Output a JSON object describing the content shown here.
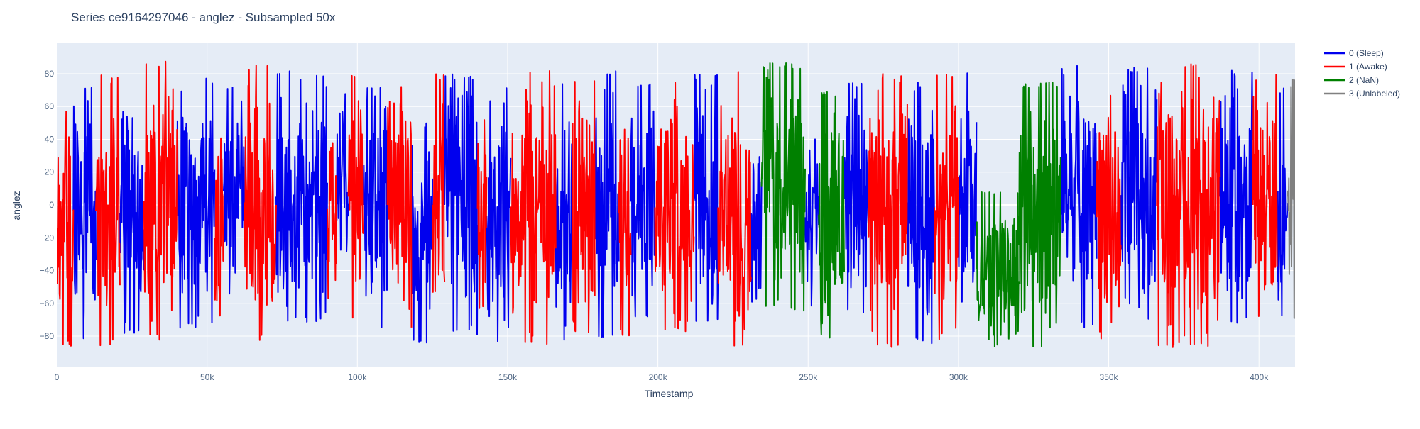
{
  "chart_data": {
    "type": "line",
    "title": "Series ce9164297046 - anglez - Subsampled 50x",
    "xlabel": "Timestamp",
    "ylabel": "anglez",
    "xlim": [
      0,
      412000
    ],
    "ylim": [
      -99,
      99
    ],
    "x_ticks": [
      {
        "value": 0,
        "label": "0"
      },
      {
        "value": 50000,
        "label": "50k"
      },
      {
        "value": 100000,
        "label": "100k"
      },
      {
        "value": 150000,
        "label": "150k"
      },
      {
        "value": 200000,
        "label": "200k"
      },
      {
        "value": 250000,
        "label": "250k"
      },
      {
        "value": 300000,
        "label": "300k"
      },
      {
        "value": 350000,
        "label": "350k"
      },
      {
        "value": 400000,
        "label": "400k"
      }
    ],
    "y_ticks": [
      {
        "value": -80,
        "label": "−80"
      },
      {
        "value": -60,
        "label": "−60"
      },
      {
        "value": -40,
        "label": "−40"
      },
      {
        "value": -20,
        "label": "−20"
      },
      {
        "value": 0,
        "label": "0"
      },
      {
        "value": 20,
        "label": "20"
      },
      {
        "value": 40,
        "label": "40"
      },
      {
        "value": 60,
        "label": "60"
      },
      {
        "value": 80,
        "label": "80"
      }
    ],
    "grid": true,
    "legend_position": "top-right, outside plot",
    "plot_background": "#e5ecf6",
    "series": [
      {
        "name": "0 (Sleep)",
        "color": "#0000ee",
        "segments": [
          {
            "x_start": 5500,
            "x_end": 13000,
            "ymin": -82,
            "ymax": 75
          },
          {
            "x_start": 21000,
            "x_end": 29000,
            "ymin": -80,
            "ymax": 70
          },
          {
            "x_start": 40000,
            "x_end": 52500,
            "ymin": -75,
            "ymax": 78
          },
          {
            "x_start": 55500,
            "x_end": 62500,
            "ymin": -55,
            "ymax": 72
          },
          {
            "x_start": 73000,
            "x_end": 90000,
            "ymin": -72,
            "ymax": 82
          },
          {
            "x_start": 93000,
            "x_end": 97000,
            "ymin": -50,
            "ymax": 80
          },
          {
            "x_start": 102000,
            "x_end": 110000,
            "ymin": -75,
            "ymax": 75
          },
          {
            "x_start": 118000,
            "x_end": 125000,
            "ymin": -86,
            "ymax": 50
          },
          {
            "x_start": 129000,
            "x_end": 140000,
            "ymin": -80,
            "ymax": 80
          },
          {
            "x_start": 143000,
            "x_end": 151000,
            "ymin": -85,
            "ymax": 72
          },
          {
            "x_start": 166000,
            "x_end": 171500,
            "ymin": -85,
            "ymax": 75
          },
          {
            "x_start": 179000,
            "x_end": 187000,
            "ymin": -83,
            "ymax": 82
          },
          {
            "x_start": 191000,
            "x_end": 199000,
            "ymin": -70,
            "ymax": 74
          },
          {
            "x_start": 212000,
            "x_end": 220000,
            "ymin": -72,
            "ymax": 80
          },
          {
            "x_start": 231000,
            "x_end": 234500,
            "ymin": -70,
            "ymax": 60
          },
          {
            "x_start": 249000,
            "x_end": 253500,
            "ymin": -65,
            "ymax": 50
          },
          {
            "x_start": 262000,
            "x_end": 270000,
            "ymin": -68,
            "ymax": 75
          },
          {
            "x_start": 283000,
            "x_end": 292000,
            "ymin": -85,
            "ymax": 88
          },
          {
            "x_start": 300000,
            "x_end": 306000,
            "ymin": -78,
            "ymax": 85
          },
          {
            "x_start": 334000,
            "x_end": 346000,
            "ymin": -75,
            "ymax": 85
          },
          {
            "x_start": 354000,
            "x_end": 366000,
            "ymin": -72,
            "ymax": 84
          },
          {
            "x_start": 387000,
            "x_end": 398000,
            "ymin": -72,
            "ymax": 82
          },
          {
            "x_start": 406000,
            "x_end": 409500,
            "ymin": -80,
            "ymax": 75
          }
        ]
      },
      {
        "name": "1 (Awake)",
        "color": "#ff0000",
        "segments": [
          {
            "x_start": 0,
            "x_end": 5500,
            "ymin": -88,
            "ymax": 60
          },
          {
            "x_start": 13000,
            "x_end": 21000,
            "ymin": -87,
            "ymax": 80
          },
          {
            "x_start": 29000,
            "x_end": 40000,
            "ymin": -83,
            "ymax": 88
          },
          {
            "x_start": 52500,
            "x_end": 55500,
            "ymin": -90,
            "ymax": 50
          },
          {
            "x_start": 62500,
            "x_end": 73000,
            "ymin": -83,
            "ymax": 86
          },
          {
            "x_start": 90000,
            "x_end": 93000,
            "ymin": -60,
            "ymax": 55
          },
          {
            "x_start": 97000,
            "x_end": 102000,
            "ymin": -70,
            "ymax": 80
          },
          {
            "x_start": 110000,
            "x_end": 118000,
            "ymin": -75,
            "ymax": 75
          },
          {
            "x_start": 125000,
            "x_end": 129000,
            "ymin": -80,
            "ymax": 80
          },
          {
            "x_start": 140000,
            "x_end": 143000,
            "ymin": -65,
            "ymax": 60
          },
          {
            "x_start": 151000,
            "x_end": 166000,
            "ymin": -86,
            "ymax": 84
          },
          {
            "x_start": 171500,
            "x_end": 179000,
            "ymin": -80,
            "ymax": 78
          },
          {
            "x_start": 187000,
            "x_end": 191000,
            "ymin": -80,
            "ymax": 70
          },
          {
            "x_start": 199000,
            "x_end": 212000,
            "ymin": -78,
            "ymax": 75
          },
          {
            "x_start": 220000,
            "x_end": 231000,
            "ymin": -88,
            "ymax": 85
          },
          {
            "x_start": 270000,
            "x_end": 283000,
            "ymin": -87,
            "ymax": 80
          },
          {
            "x_start": 292000,
            "x_end": 300000,
            "ymin": -85,
            "ymax": 82
          },
          {
            "x_start": 346000,
            "x_end": 354000,
            "ymin": -85,
            "ymax": 70
          },
          {
            "x_start": 366000,
            "x_end": 387000,
            "ymin": -88,
            "ymax": 87
          },
          {
            "x_start": 398000,
            "x_end": 406000,
            "ymin": -80,
            "ymax": 80
          }
        ]
      },
      {
        "name": "2 (NaN)",
        "color": "#008000",
        "segments": [
          {
            "x_start": 234500,
            "x_end": 249000,
            "ymin": -65,
            "ymax": 87
          },
          {
            "x_start": 253500,
            "x_end": 262000,
            "ymin": -82,
            "ymax": 70
          },
          {
            "x_start": 306000,
            "x_end": 320000,
            "ymin": -88,
            "ymax": 10
          },
          {
            "x_start": 320000,
            "x_end": 334000,
            "ymin": -88,
            "ymax": 75
          }
        ]
      },
      {
        "name": "3 (Unlabeled)",
        "color": "#808080",
        "segments": [
          {
            "x_start": 409500,
            "x_end": 412000,
            "ymin": -70,
            "ymax": 80
          }
        ]
      }
    ]
  }
}
